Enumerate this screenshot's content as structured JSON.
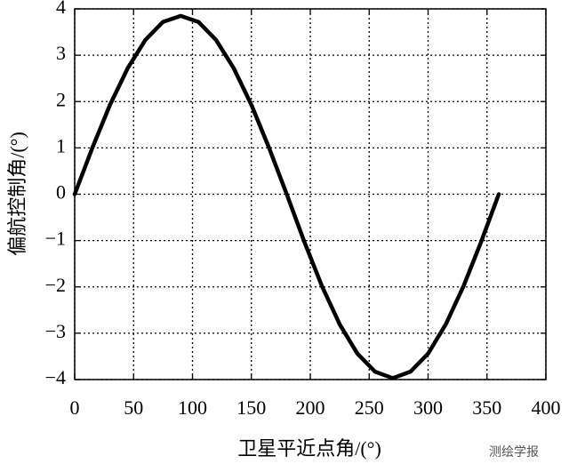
{
  "chart_data": {
    "type": "line",
    "xlabel": "卫星平近点角/(°)",
    "ylabel": "偏航控制角/(°)",
    "x": [
      0,
      15,
      30,
      45,
      60,
      75,
      90,
      105,
      120,
      135,
      150,
      165,
      180,
      195,
      210,
      225,
      240,
      255,
      270,
      285,
      300,
      315,
      330,
      345,
      360
    ],
    "series": [
      {
        "name": null,
        "color": "#000000",
        "values": [
          0,
          1.0,
          1.93,
          2.72,
          3.33,
          3.72,
          3.85,
          3.72,
          3.33,
          2.72,
          1.93,
          1.0,
          0,
          -1.03,
          -1.99,
          -2.81,
          -3.44,
          -3.83,
          -3.97,
          -3.83,
          -3.44,
          -2.81,
          -1.99,
          -1.03,
          0
        ]
      }
    ],
    "xlim": [
      0,
      400
    ],
    "xticks": [
      0,
      50,
      100,
      150,
      200,
      250,
      300,
      350,
      400
    ],
    "ylim": [
      -4,
      4
    ],
    "yticks": [
      {
        "value": -4,
        "label": "−4"
      },
      {
        "value": -3,
        "label": "−3"
      },
      {
        "value": -2,
        "label": "−2"
      },
      {
        "value": -1,
        "label": "−1"
      },
      0,
      1,
      2,
      3,
      4
    ],
    "grid": true
  },
  "watermark": "测绘学报"
}
